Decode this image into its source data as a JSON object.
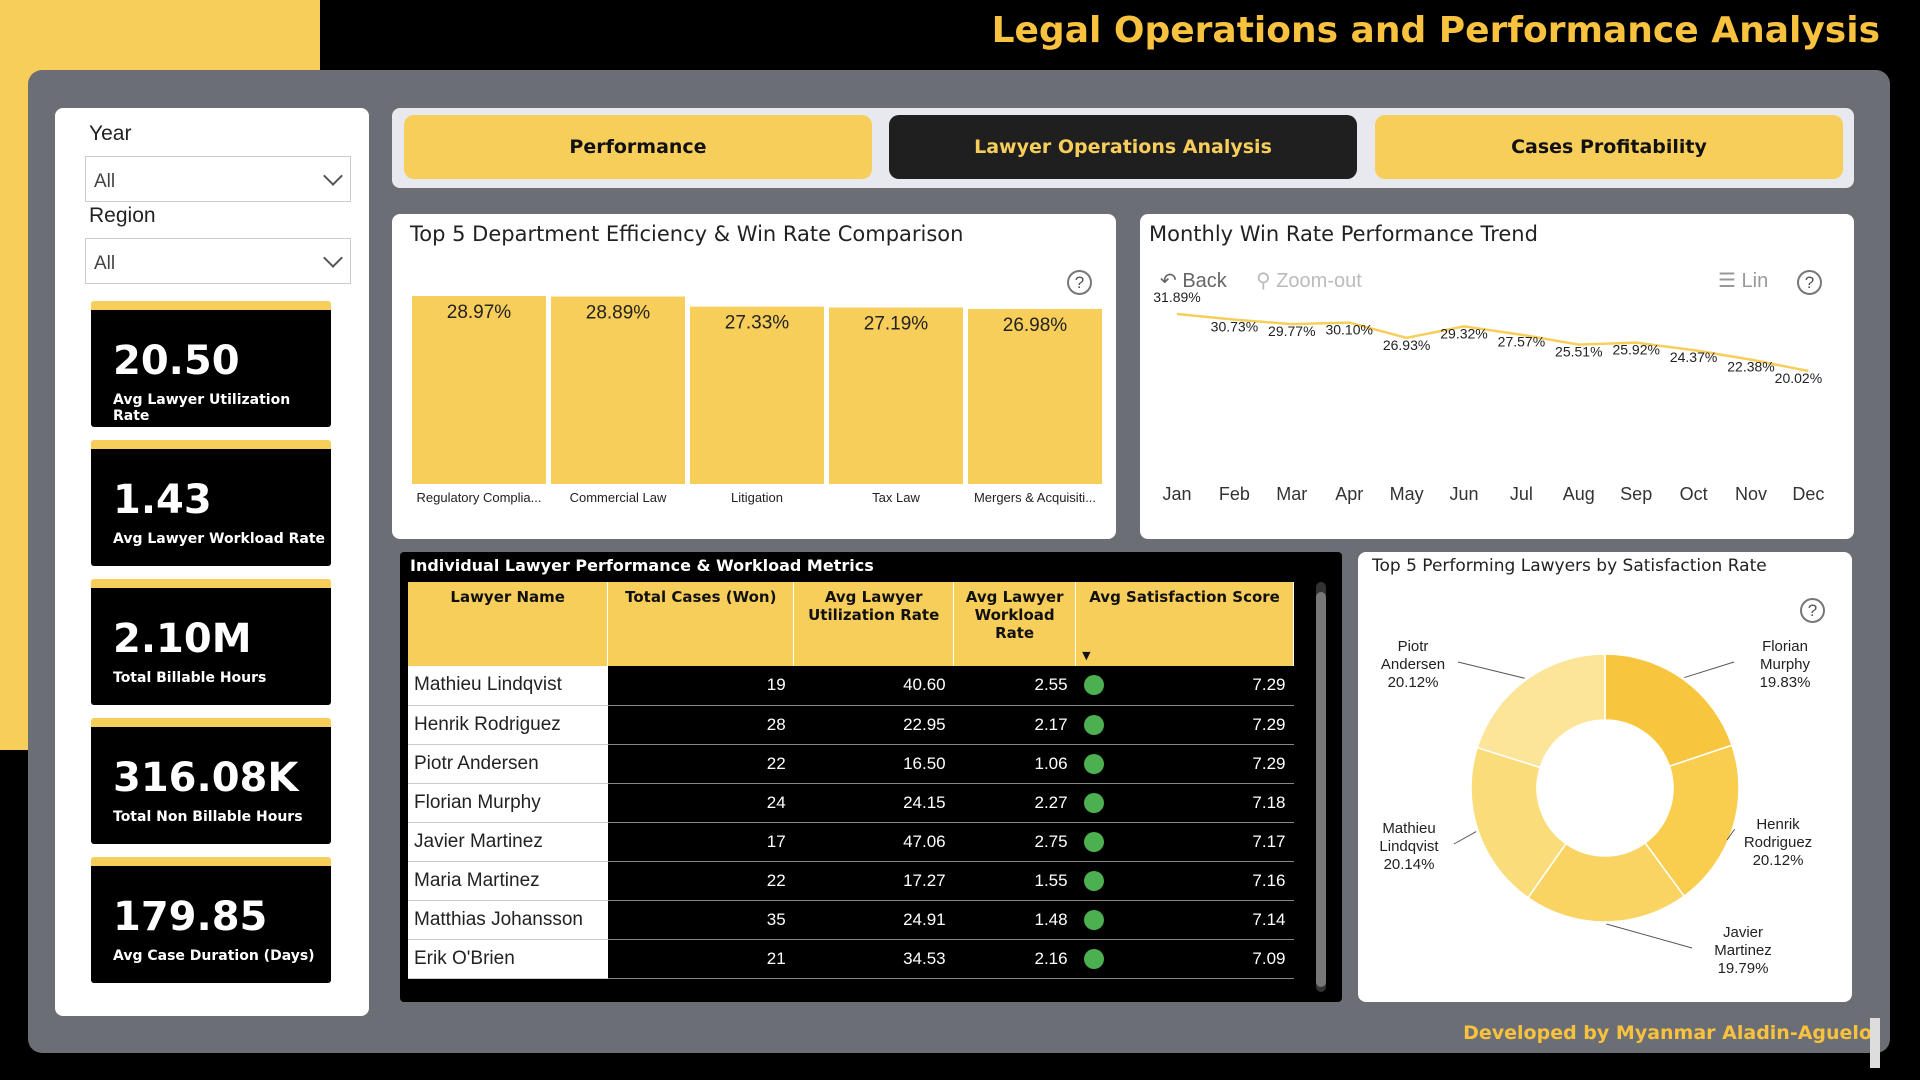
{
  "header": {
    "title": "Legal Operations and Performance Analysis"
  },
  "footer": {
    "credit": "Developed by Myanmar Aladin-Aguelo"
  },
  "filters": {
    "year": {
      "label": "Year",
      "value": "All"
    },
    "region": {
      "label": "Region",
      "value": "All"
    }
  },
  "kpis": [
    {
      "value": "20.50",
      "label": "Avg Lawyer Utilization Rate"
    },
    {
      "value": "1.43",
      "label": "Avg Lawyer Workload Rate"
    },
    {
      "value": "2.10M",
      "label": "Total Billable Hours"
    },
    {
      "value": "316.08K",
      "label": "Total Non Billable Hours"
    },
    {
      "value": "179.85",
      "label": "Avg Case Duration (Days)"
    }
  ],
  "nav": {
    "tabs": [
      "Performance",
      "Lawyer Operations Analysis",
      "Cases Profitability"
    ],
    "active": "Lawyer Operations Analysis"
  },
  "line_toolbar": {
    "back": "Back",
    "zoom": "Zoom-out",
    "lin": "Lin"
  },
  "chart_data": [
    {
      "type": "bar",
      "title": "Top 5 Department Efficiency & Win Rate Comparison",
      "categories": [
        "Regulatory Complia...",
        "Commercial Law",
        "Litigation",
        "Tax Law",
        "Mergers & Acquisiti..."
      ],
      "values": [
        28.97,
        28.89,
        27.33,
        27.19,
        26.98
      ],
      "labels": [
        "28.97%",
        "28.89%",
        "27.33%",
        "27.19%",
        "26.98%"
      ],
      "color": "#F8CE5B"
    },
    {
      "type": "line",
      "title": "Monthly Win Rate Performance Trend",
      "categories": [
        "Jan",
        "Feb",
        "Mar",
        "Apr",
        "May",
        "Jun",
        "Jul",
        "Aug",
        "Sep",
        "Oct",
        "Nov",
        "Dec"
      ],
      "values": [
        31.89,
        30.73,
        29.77,
        30.1,
        26.93,
        29.32,
        27.57,
        25.51,
        25.92,
        24.37,
        22.38,
        20.02
      ],
      "labels": [
        "31.89%",
        "30.73%",
        "29.77%",
        "30.10%",
        "26.93%",
        "29.32%",
        "27.57%",
        "25.51%",
        "25.92%",
        "24.37%",
        "22.38%",
        "20.02%"
      ],
      "color": "#F8CE5B"
    },
    {
      "type": "pie",
      "title": "Top 5 Performing Lawyers by Satisfaction Rate",
      "slices": [
        {
          "name": "Florian Murphy",
          "value": 19.83,
          "label": "19.83%",
          "color": "#F8C63E"
        },
        {
          "name": "Henrik Rodriguez",
          "value": 20.12,
          "label": "20.12%",
          "color": "#F9CD4E"
        },
        {
          "name": "Javier Martinez",
          "value": 19.79,
          "label": "19.79%",
          "color": "#FAD462"
        },
        {
          "name": "Mathieu Lindqvist",
          "value": 20.14,
          "label": "20.14%",
          "color": "#FBDC7A"
        },
        {
          "name": "Piotr Andersen",
          "value": 20.12,
          "label": "20.12%",
          "color": "#FCE498"
        }
      ]
    }
  ],
  "table": {
    "title": "Individual Lawyer Performance & Workload Metrics",
    "columns": [
      "Lawyer Name",
      "Total Cases (Won)",
      "Avg Lawyer Utilization Rate",
      "Avg Lawyer Workload Rate",
      "Avg Satisfaction Score"
    ],
    "rows": [
      [
        "Mathieu Lindqvist",
        "19",
        "40.60",
        "2.55",
        "7.29"
      ],
      [
        "Henrik Rodriguez",
        "28",
        "22.95",
        "2.17",
        "7.29"
      ],
      [
        "Piotr Andersen",
        "22",
        "16.50",
        "1.06",
        "7.29"
      ],
      [
        "Florian Murphy",
        "24",
        "24.15",
        "2.27",
        "7.18"
      ],
      [
        "Javier Martinez",
        "17",
        "47.06",
        "2.75",
        "7.17"
      ],
      [
        "Maria Martinez",
        "22",
        "17.27",
        "1.55",
        "7.16"
      ],
      [
        "Matthias Johansson",
        "35",
        "24.91",
        "1.48",
        "7.14"
      ],
      [
        "Erik O'Brien",
        "21",
        "34.53",
        "2.16",
        "7.09"
      ]
    ],
    "status_color": "#4CAF50"
  }
}
